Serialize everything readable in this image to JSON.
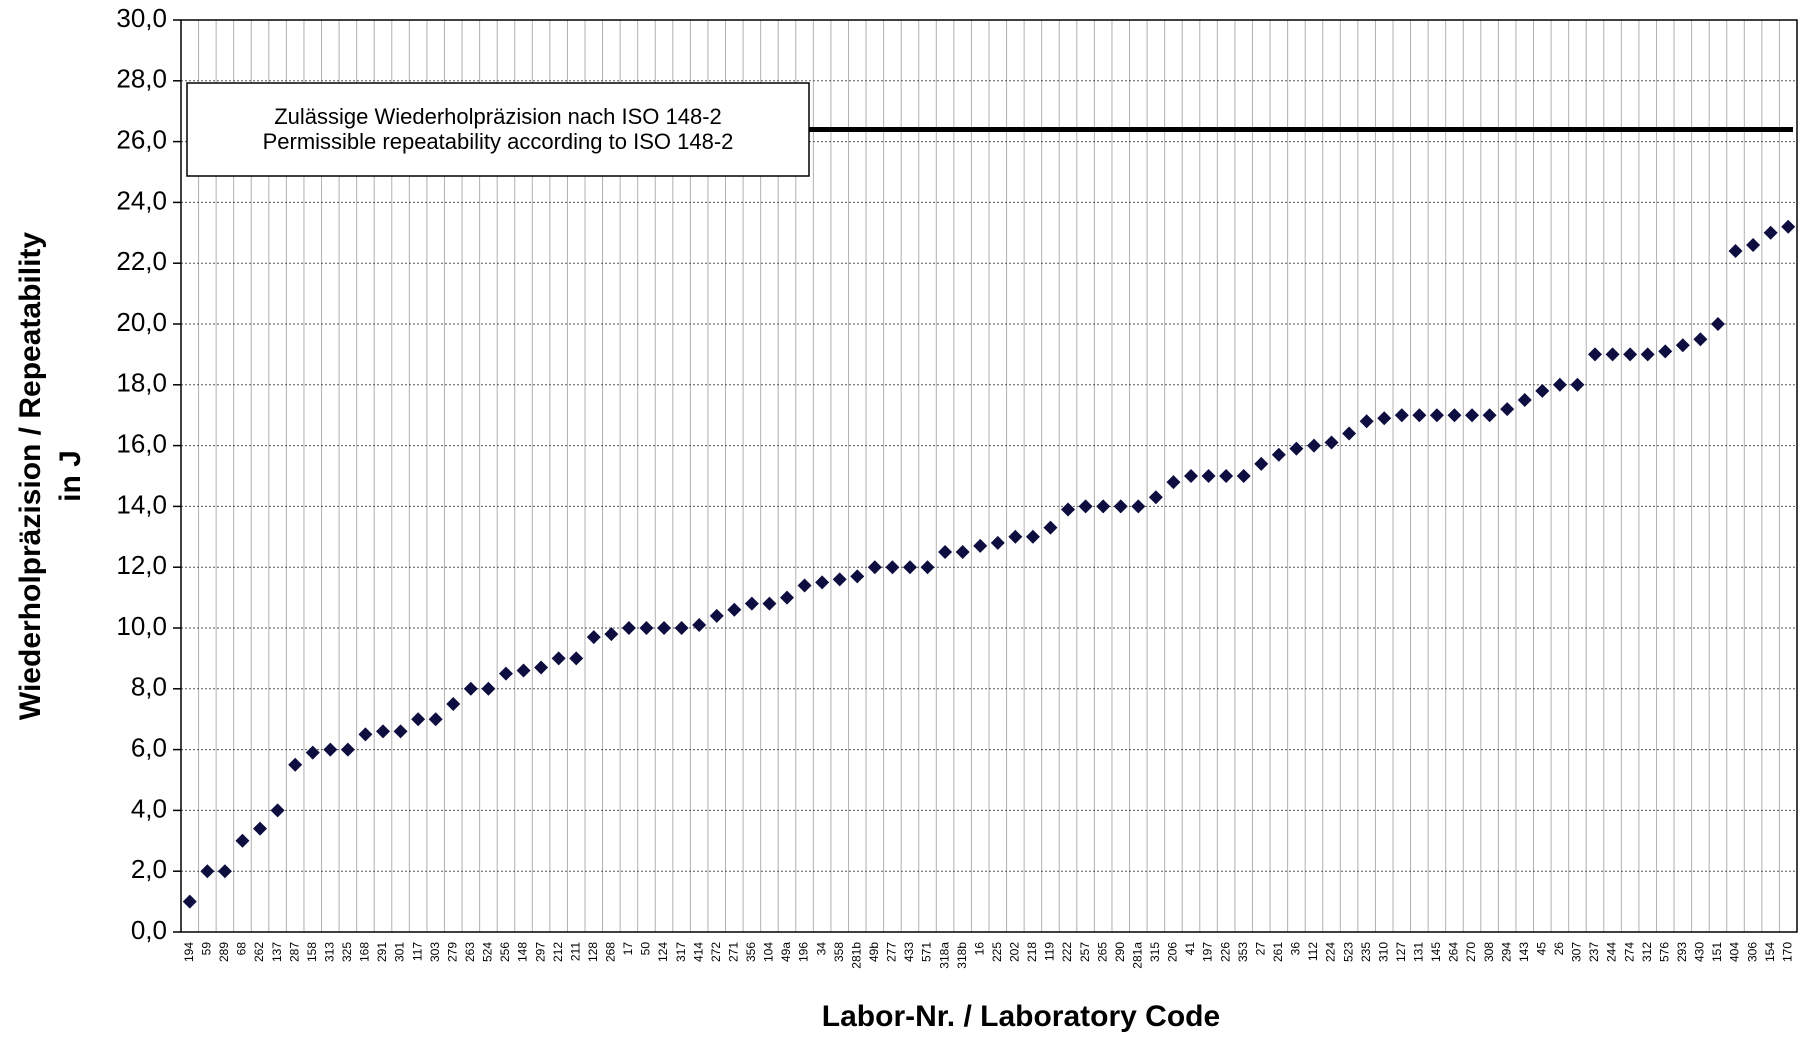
{
  "chart_data": {
    "type": "scatter",
    "x_label": "Labor-Nr. / Laboratory Code",
    "y_label": [
      "Wiederholpräzision / Repeatability",
      "in J"
    ],
    "annotation": [
      "Zulässige Wiederholpräzision nach ISO 148-2",
      "Permissible repeatability according to ISO 148-2"
    ],
    "reference_line": {
      "value": 26.4,
      "color": "#000000"
    },
    "categories": [
      "194",
      "59",
      "289",
      "68",
      "262",
      "137",
      "287",
      "158",
      "313",
      "325",
      "168",
      "291",
      "301",
      "117",
      "303",
      "279",
      "263",
      "524",
      "256",
      "148",
      "297",
      "212",
      "211",
      "128",
      "268",
      "17",
      "50",
      "124",
      "317",
      "414",
      "272",
      "271",
      "356",
      "104",
      "49a",
      "196",
      "34",
      "358",
      "281b",
      "49b",
      "277",
      "433",
      "571",
      "318a",
      "318b",
      "16",
      "225",
      "202",
      "218",
      "119",
      "222",
      "257",
      "265",
      "290",
      "281a",
      "315",
      "206",
      "41",
      "197",
      "226",
      "353",
      "27",
      "261",
      "36",
      "112",
      "224",
      "523",
      "235",
      "310",
      "127",
      "131",
      "145",
      "264",
      "270",
      "308",
      "294",
      "143",
      "45",
      "26",
      "307",
      "237",
      "244",
      "274",
      "312",
      "576",
      "293",
      "430",
      "151",
      "404",
      "306",
      "154",
      "170"
    ],
    "values": [
      1.0,
      2.0,
      2.0,
      3.0,
      3.4,
      4.0,
      5.5,
      5.9,
      6.0,
      6.0,
      6.5,
      6.6,
      6.6,
      7.0,
      7.0,
      7.5,
      8.0,
      8.0,
      8.5,
      8.6,
      8.7,
      9.0,
      9.0,
      9.7,
      9.8,
      10.0,
      10.0,
      10.0,
      10.0,
      10.1,
      10.4,
      10.6,
      10.8,
      10.8,
      11.0,
      11.4,
      11.5,
      11.6,
      11.7,
      12.0,
      12.0,
      12.0,
      12.0,
      12.5,
      12.5,
      12.7,
      12.8,
      13.0,
      13.0,
      13.3,
      13.9,
      14.0,
      14.0,
      14.0,
      14.0,
      14.3,
      14.8,
      15.0,
      15.0,
      15.0,
      15.0,
      15.4,
      15.7,
      15.9,
      16.0,
      16.1,
      16.4,
      16.8,
      16.9,
      17.0,
      17.0,
      17.0,
      17.0,
      17.0,
      17.0,
      17.2,
      17.5,
      17.8,
      18.0,
      18.0,
      19.0,
      19.0,
      19.0,
      19.0,
      19.1,
      19.3,
      19.5,
      20.0,
      22.4,
      22.6,
      23.0,
      23.2
    ],
    "color": "#0d0d40",
    "ylim": [
      0,
      30
    ],
    "yticks": [
      {
        "value": 0,
        "label": "0,0"
      },
      {
        "value": 2,
        "label": "2,0"
      },
      {
        "value": 4,
        "label": "4,0"
      },
      {
        "value": 6,
        "label": "6,0"
      },
      {
        "value": 8,
        "label": "8,0"
      },
      {
        "value": 10,
        "label": "10,0"
      },
      {
        "value": 12,
        "label": "12,0"
      },
      {
        "value": 14,
        "label": "14,0"
      },
      {
        "value": 16,
        "label": "16,0"
      },
      {
        "value": 18,
        "label": "18,0"
      },
      {
        "value": 20,
        "label": "20,0"
      },
      {
        "value": 22,
        "label": "22,0"
      },
      {
        "value": 24,
        "label": "24,0"
      },
      {
        "value": 26,
        "label": "26,0"
      },
      {
        "value": 28,
        "label": "28,0"
      },
      {
        "value": 30,
        "label": "30,0"
      }
    ],
    "grid": true
  }
}
